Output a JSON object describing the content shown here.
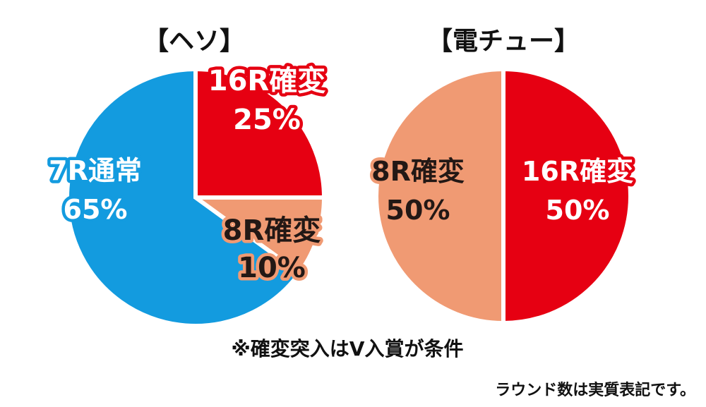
{
  "chart_data": [
    {
      "type": "pie",
      "title": "【ヘソ】",
      "slices": [
        {
          "name": "16R確変",
          "value": 25,
          "value_label": "25%",
          "color": "#e60012",
          "label_fill": "#ffffff",
          "label_stroke": "#e60012"
        },
        {
          "name": "8R確変",
          "value": 10,
          "value_label": "10%",
          "color": "#f09a73",
          "label_fill": "#231815",
          "label_stroke": "#f09a73"
        },
        {
          "name": "7R通常",
          "value": 65,
          "value_label": "65%",
          "color": "#139bdf",
          "label_fill": "#ffffff",
          "label_stroke": "#139bdf"
        }
      ]
    },
    {
      "type": "pie",
      "title": "【電チュー】",
      "slices": [
        {
          "name": "16R確変",
          "value": 50,
          "value_label": "50%",
          "color": "#e60012",
          "label_fill": "#ffffff",
          "label_stroke": "#e60012"
        },
        {
          "name": "8R確変",
          "value": 50,
          "value_label": "50%",
          "color": "#f09a73",
          "label_fill": "#231815",
          "label_stroke": "#f09a73"
        }
      ]
    }
  ],
  "notes": {
    "condition": "※確変突入はV入賞が条件",
    "round_note": "ラウンド数は実質表記です。"
  }
}
